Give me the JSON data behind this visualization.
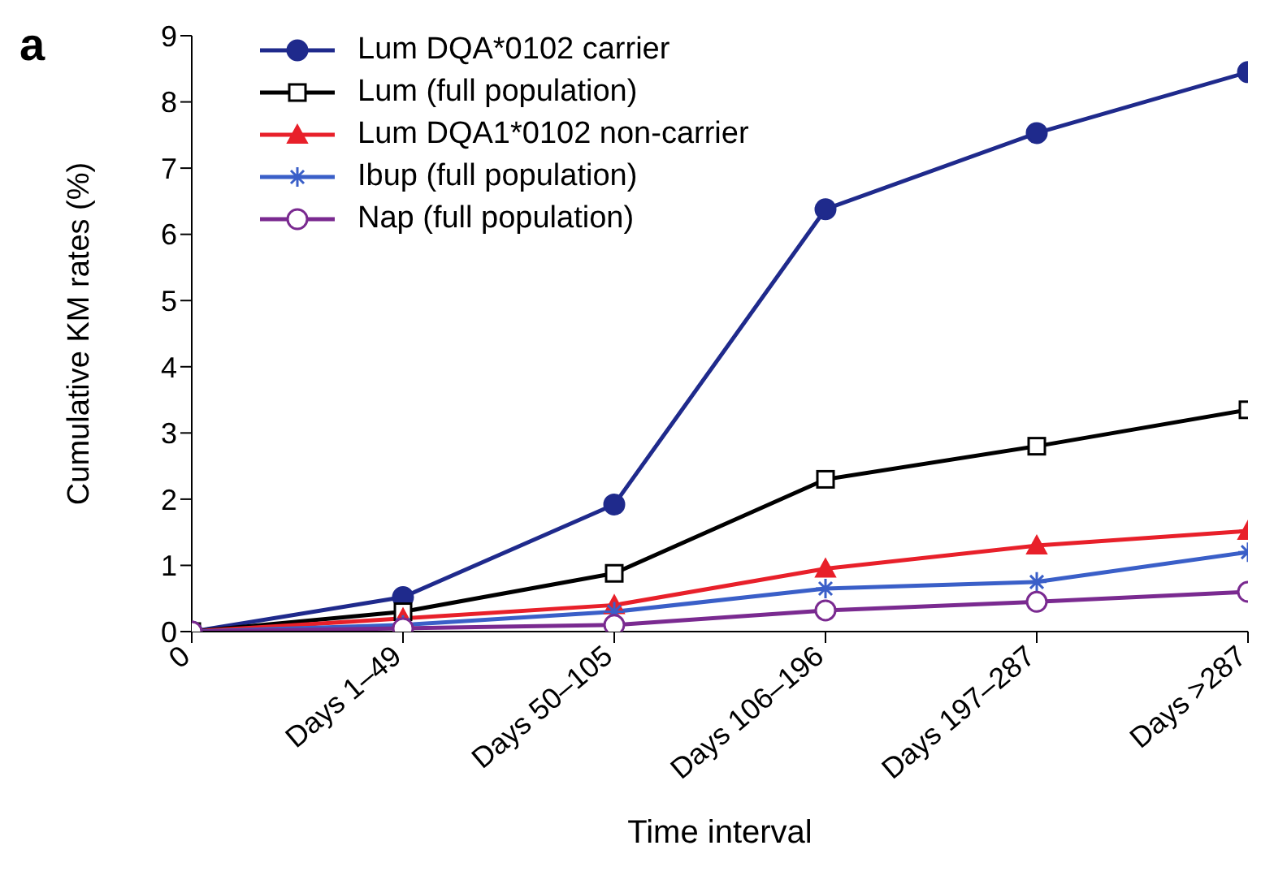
{
  "chart_data": {
    "type": "line",
    "xlabel": "Time interval",
    "ylabel": "Cumulative KM rates (%)",
    "annotations": [
      "a"
    ],
    "categories": [
      "0",
      "Days 1–49",
      "Days 50–105",
      "Days 106–196",
      "Days 197–287",
      "Days >287"
    ],
    "ylim": [
      0,
      9
    ],
    "yticks": [
      0,
      1,
      2,
      3,
      4,
      5,
      6,
      7,
      8,
      9
    ],
    "grid": false,
    "legend": "top left",
    "line_style": "solid",
    "series": [
      {
        "name": "Lum DQA*0102 carrier",
        "color": "#1f2a8c",
        "marker": "circle",
        "values": [
          0,
          0.52,
          1.92,
          6.38,
          7.53,
          8.45
        ]
      },
      {
        "name": "Lum (full population)",
        "color": "#000000",
        "marker": "square",
        "values": [
          0,
          0.3,
          0.88,
          2.3,
          2.8,
          3.35
        ]
      },
      {
        "name": "Lum DQA1*0102 non-carrier",
        "color": "#e8202a",
        "marker": "triangle",
        "values": [
          0,
          0.2,
          0.4,
          0.95,
          1.3,
          1.52
        ]
      },
      {
        "name": "Ibup (full population)",
        "color": "#3a5fc8",
        "marker": "cross",
        "values": [
          0,
          0.1,
          0.3,
          0.65,
          0.75,
          1.2
        ]
      },
      {
        "name": "Nap (full population)",
        "color": "#7a2a90",
        "marker": "circle",
        "values": [
          0,
          0.05,
          0.1,
          0.32,
          0.45,
          0.6
        ]
      }
    ]
  }
}
